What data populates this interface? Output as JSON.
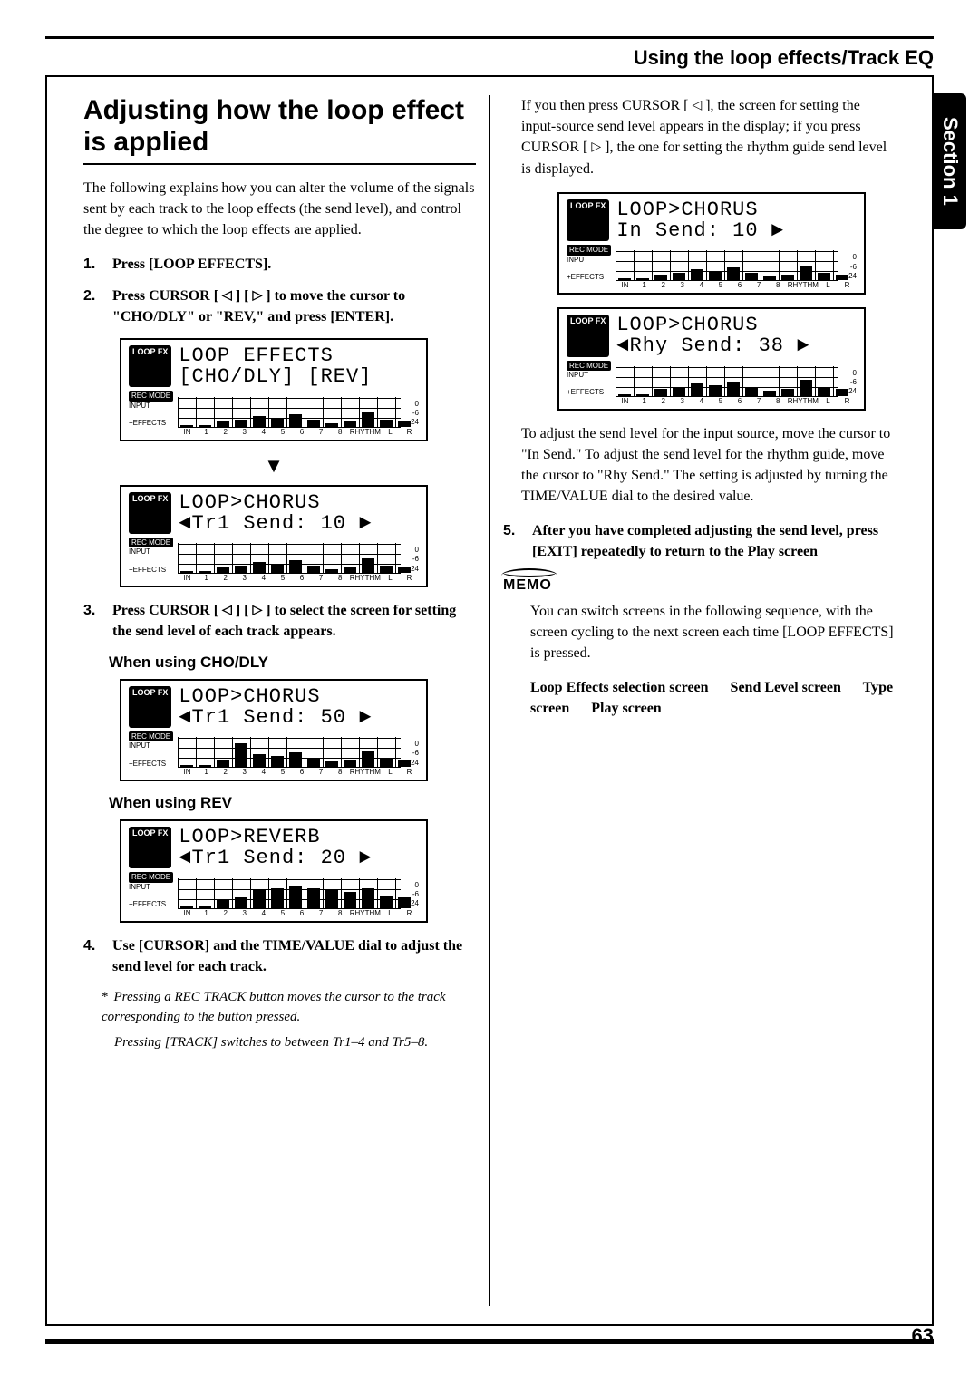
{
  "header": {
    "title": "Using the loop effects/Track EQ"
  },
  "sideTab": {
    "label": "Section 1"
  },
  "pageNumber": "63",
  "left": {
    "title": "Adjusting how the loop effect is applied",
    "intro": "The following explains how you can alter the volume of the signals sent by each track to the loop effects (the send level), and control the degree to which the loop effects are applied.",
    "step1": "Press [LOOP EFFECTS].",
    "step2a": "Press CURSOR [ ",
    "step2b": " ] [ ",
    "step2c": " ] to move the cursor to \"CHO/DLY\" or \"REV,\" and press [ENTER].",
    "step3a": "Press CURSOR [ ",
    "step3b": " ] [ ",
    "step3c": " ] to select the screen for setting the send level of each track appears.",
    "sub_cho": "When using CHO/DLY",
    "sub_rev": "When using REV",
    "step4": "Use [CURSOR] and the TIME/VALUE dial to adjust the send level for each track.",
    "note1": "Pressing a REC TRACK button moves the cursor to the track corresponding to the button pressed.",
    "note2": "Pressing [TRACK] switches to between Tr1–4 and Tr5–8.",
    "lcd1": {
      "line1": "LOOP EFFECTS",
      "line2": "[CHO/DLY] [REV]"
    },
    "lcd2": {
      "line1": "LOOP>CHORUS",
      "line2": "◄Tr1 Send:   10 ►"
    },
    "lcd3": {
      "line1": "LOOP>CHORUS",
      "line2": "◄Tr1 Send:   50 ►"
    },
    "lcd4": {
      "line1": "LOOP>REVERB",
      "line2": "◄Tr1 Send:   20 ►"
    }
  },
  "right": {
    "para1a": "If you then press CURSOR [ ",
    "para1b": " ], the screen for setting the input-source send level appears in the display; if you press CURSOR [ ",
    "para1c": " ], the one for setting the rhythm guide send level is displayed.",
    "lcd5": {
      "line1": "LOOP>CHORUS",
      "line2": " In Send:   10 ►"
    },
    "lcd6": {
      "line1": "LOOP>CHORUS",
      "line2": "◄Rhy Send:   38 ►"
    },
    "para2": "To adjust the send level for the input source, move the cursor to \"In Send.\" To adjust the send level for the rhythm guide, move the cursor to \"Rhy Send.\" The setting is adjusted by turning the TIME/VALUE dial to the desired value.",
    "step5": "After you have completed adjusting the send level, press [EXIT] repeatedly to return to the Play screen",
    "memoLabel": "MEMO",
    "memo1": "You can switch screens in the following sequence, with the screen cycling to the next screen each time [LOOP EFFECTS] is pressed.",
    "memo2": "Loop Effects selection screen   Send Level screen   Type screen   Play screen"
  },
  "lcdCommon": {
    "badge": "LOOP FX",
    "recmode": "REC MODE",
    "input": "INPUT",
    "effects": "+EFFECTS",
    "sc0": "0",
    "sc6": "-6",
    "sc24": "-24",
    "axis": [
      "IN",
      "1",
      "2",
      "3",
      "4",
      "5",
      "6",
      "7",
      "8",
      "RHYTHM",
      "L",
      "R"
    ]
  },
  "bars": {
    "a": [
      2,
      2,
      6,
      8,
      12,
      10,
      14,
      8,
      4,
      6,
      16,
      8,
      6
    ],
    "b": [
      2,
      2,
      6,
      8,
      12,
      10,
      14,
      8,
      4,
      6,
      16,
      8,
      6
    ],
    "c": [
      2,
      2,
      8,
      26,
      14,
      12,
      16,
      10,
      6,
      8,
      18,
      10,
      8
    ],
    "d": [
      2,
      2,
      10,
      12,
      20,
      22,
      24,
      22,
      20,
      18,
      22,
      14,
      12
    ],
    "e": [
      2,
      2,
      6,
      8,
      12,
      10,
      14,
      8,
      4,
      6,
      16,
      8,
      6
    ],
    "f": [
      2,
      2,
      8,
      10,
      14,
      12,
      16,
      10,
      6,
      8,
      18,
      10,
      8
    ]
  }
}
